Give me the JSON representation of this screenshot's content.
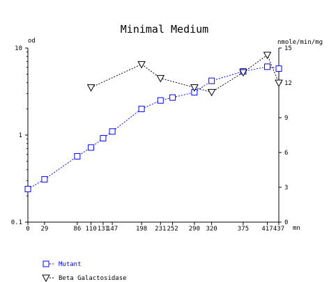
{
  "chart_data": {
    "type": "line",
    "title": "Minimal Medium",
    "y_left_unit": "od",
    "y_right_unit": "nmole/min/mg",
    "x_unit": "mn",
    "x_lim": [
      0,
      437
    ],
    "y_left_lim": [
      0.1,
      10
    ],
    "y_left_scale": "log",
    "y_right_lim": [
      0,
      15
    ],
    "x_ticks": [
      0,
      29,
      86,
      110,
      131,
      147,
      198,
      231,
      252,
      290,
      320,
      375,
      417,
      437
    ],
    "x_tick_labels": [
      "0",
      "29",
      "86",
      "110",
      "131",
      "147",
      "198",
      "231",
      "252",
      "290",
      "320",
      "375",
      "417",
      "437"
    ],
    "y_left_ticks": [
      0.1,
      1,
      10
    ],
    "y_left_tick_labels": [
      "0.1",
      "1",
      "10"
    ],
    "y_right_ticks": [
      0,
      3,
      6,
      9,
      12,
      15
    ],
    "y_right_tick_labels": [
      "0",
      "3",
      "6",
      "9",
      "12",
      "15"
    ],
    "grid": false,
    "legend_position": "bottom-left",
    "series": [
      {
        "name": "Mutant",
        "axis": "left",
        "marker": "square",
        "color": "#0000ff",
        "line_style": "dashed",
        "x": [
          0,
          29,
          86,
          110,
          131,
          147,
          198,
          231,
          252,
          290,
          320,
          375,
          417,
          437
        ],
        "y": [
          0.24,
          0.31,
          0.57,
          0.72,
          0.92,
          1.1,
          2.0,
          2.5,
          2.7,
          3.1,
          4.2,
          5.4,
          6.1,
          5.8
        ]
      },
      {
        "name": "Beta Galactosidase",
        "axis": "right",
        "marker": "triangle-down",
        "color": "#000000",
        "line_style": "dashed",
        "x": [
          110,
          198,
          231,
          290,
          320,
          375,
          417,
          437
        ],
        "y": [
          11.6,
          13.6,
          12.4,
          11.6,
          11.2,
          12.9,
          14.4,
          12.0
        ]
      }
    ]
  }
}
